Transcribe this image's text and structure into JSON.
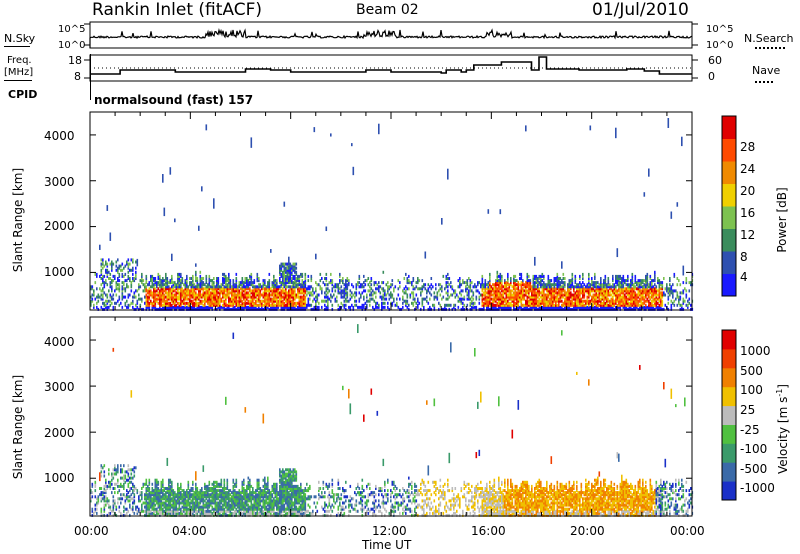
{
  "header": {
    "station": "Rankin Inlet (fitACF)",
    "beam": "Beam 02",
    "date": "01/Jul/2010"
  },
  "strip1": {
    "left_label": "N.Sky",
    "left_ticks": [
      "10^5",
      "10^0"
    ],
    "right_label": "N.Search",
    "right_ticks": [
      "10^5",
      "10^0"
    ]
  },
  "strip2": {
    "left_label_1": "Freq.",
    "left_label_2": "[MHz]",
    "left_ticks": [
      "18",
      "8"
    ],
    "right_label": "Nave",
    "right_ticks": [
      "60",
      "0"
    ],
    "cpid_label": "CPID",
    "cpid_value": "normalsound (fast) 157"
  },
  "chart_data": [
    {
      "type": "heatmap",
      "name": "power-panel",
      "ylabel": "Slant Range [km]",
      "yticks": [
        "1000",
        "2000",
        "3000",
        "4000"
      ],
      "ylim": [
        180,
        4500
      ],
      "xlim": [
        0,
        24
      ],
      "colorbar": {
        "label": "Power [dB]",
        "ticks": [
          "4",
          "8",
          "12",
          "16",
          "20",
          "24",
          "28"
        ],
        "colors": [
          "#1a1aff",
          "#2e50b0",
          "#3a8c5c",
          "#7dc250",
          "#f0d000",
          "#f08a00",
          "#ff4a00",
          "#e00000"
        ]
      }
    },
    {
      "type": "heatmap",
      "name": "velocity-panel",
      "ylabel": "Slant Range [km]",
      "yticks": [
        "1000",
        "2000",
        "3000",
        "4000"
      ],
      "ylim": [
        180,
        4500
      ],
      "xlim": [
        0,
        24
      ],
      "xlabel": "Time UT",
      "xticks": [
        "00:00",
        "04:00",
        "08:00",
        "12:00",
        "16:00",
        "20:00",
        "00:00"
      ],
      "colorbar": {
        "label": "Velocity",
        "unit": "[m s",
        "unit_exp": "-1",
        "unit_close": "]",
        "ticks": [
          "1000",
          "500",
          "100",
          "25",
          "-25",
          "-100",
          "-500",
          "-1000"
        ],
        "colors": [
          "#1a30c8",
          "#3a6aa8",
          "#3a9a6a",
          "#50c040",
          "#bcbcbc",
          "#f0c000",
          "#f08000",
          "#f04000",
          "#e00000"
        ]
      }
    }
  ]
}
